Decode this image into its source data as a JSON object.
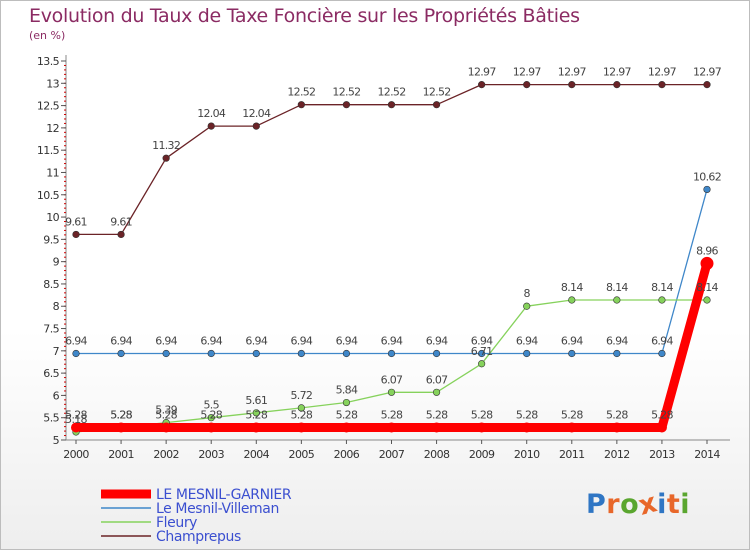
{
  "header": {
    "title": "Evolution du Taux de Taxe Foncière sur les Propriétés Bâties",
    "subtitle": "(en %)"
  },
  "logo": {
    "letters": [
      "P",
      "r",
      "o",
      "x",
      "i",
      "t",
      "i"
    ],
    "colors": [
      "#2f76c4",
      "#e8672a",
      "#5aa62f",
      "#e8672a",
      "#2f76c4",
      "#e8672a",
      "#5aa62f"
    ]
  },
  "chart_data": {
    "type": "line",
    "title": "Evolution du Taux de Taxe Foncière sur les Propriétés Bâties",
    "ylabel": "(en %)",
    "xlabel": "",
    "x": [
      2000,
      2001,
      2002,
      2003,
      2004,
      2005,
      2006,
      2007,
      2008,
      2009,
      2010,
      2011,
      2012,
      2013,
      2014
    ],
    "ylim": [
      5,
      13.5
    ],
    "yticks": [
      5,
      5.5,
      6,
      6.5,
      7,
      7.5,
      8,
      8.5,
      9,
      9.5,
      10,
      10.5,
      11,
      11.5,
      12,
      12.5,
      13,
      13.5
    ],
    "grid": false,
    "legend_position": "bottom-left",
    "series": [
      {
        "name": "Champrepus",
        "color": "#6b2327",
        "labels": [
          "9.61",
          "9.61",
          "11.32",
          "12.04",
          "12.04",
          "12.52",
          "12.52",
          "12.52",
          "12.52",
          "12.97",
          "12.97",
          "12.97",
          "12.97",
          "12.97",
          "12.97"
        ],
        "values": [
          9.61,
          9.61,
          11.32,
          12.04,
          12.04,
          12.52,
          12.52,
          12.52,
          12.52,
          12.97,
          12.97,
          12.97,
          12.97,
          12.97,
          12.97
        ]
      },
      {
        "name": "Le Mesnil-Villeman",
        "color": "#3f87c9",
        "labels": [
          "6.94",
          "6.94",
          "6.94",
          "6.94",
          "6.94",
          "6.94",
          "6.94",
          "6.94",
          "6.94",
          "6.94",
          "6.94",
          "6.94",
          "6.94",
          "6.94",
          "10.62"
        ],
        "values": [
          6.94,
          6.94,
          6.94,
          6.94,
          6.94,
          6.94,
          6.94,
          6.94,
          6.94,
          6.94,
          6.94,
          6.94,
          6.94,
          6.94,
          10.62
        ]
      },
      {
        "name": "Fleury",
        "color": "#86d25c",
        "labels": [
          "5.18",
          "5.28",
          "5.39",
          "5.5",
          "5.61",
          "5.72",
          "5.84",
          "6.07",
          "6.07",
          "6.71",
          "8",
          "8.14",
          "8.14",
          "8.14",
          "8.14"
        ],
        "values": [
          5.18,
          5.28,
          5.39,
          5.5,
          5.61,
          5.72,
          5.84,
          6.07,
          6.07,
          6.71,
          8,
          8.14,
          8.14,
          8.14,
          8.14
        ]
      },
      {
        "name": "LE MESNIL-GARNIER",
        "color": "#ff0000",
        "labels": [
          "5.28",
          "5.28",
          "5.28",
          "5.28",
          "5.28",
          "5.28",
          "5.28",
          "5.28",
          "5.28",
          "5.28",
          "5.28",
          "5.28",
          "5.28",
          "5.28",
          "8.96"
        ],
        "values": [
          5.28,
          5.28,
          5.28,
          5.28,
          5.28,
          5.28,
          5.28,
          5.28,
          5.28,
          5.28,
          5.28,
          5.28,
          5.28,
          5.28,
          8.96
        ]
      }
    ],
    "legend_order": [
      "LE MESNIL-GARNIER",
      "Le Mesnil-Villeman",
      "Fleury",
      "Champrepus"
    ]
  }
}
